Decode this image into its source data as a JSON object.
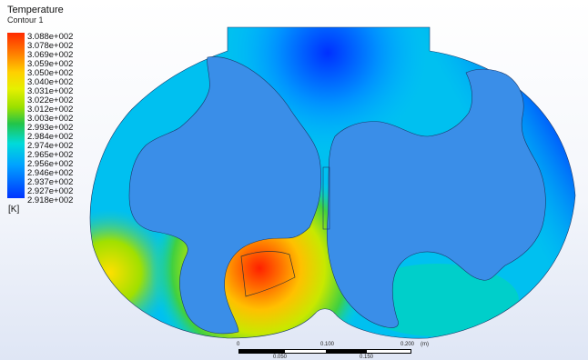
{
  "legend": {
    "title": "Temperature",
    "subtitle": "Contour 1",
    "ticks": [
      "3.088e+002",
      "3.078e+002",
      "3.069e+002",
      "3.059e+002",
      "3.050e+002",
      "3.040e+002",
      "3.031e+002",
      "3.022e+002",
      "3.012e+002",
      "3.003e+002",
      "2.993e+002",
      "2.984e+002",
      "2.974e+002",
      "2.965e+002",
      "2.956e+002",
      "2.946e+002",
      "2.937e+002",
      "2.927e+002",
      "2.918e+002"
    ],
    "unit": "[K]"
  },
  "scale": {
    "top_labels": [
      "0",
      "0.100",
      "0.200",
      "(m)"
    ],
    "bottom_labels": [
      "0.050",
      "0.150"
    ]
  }
}
